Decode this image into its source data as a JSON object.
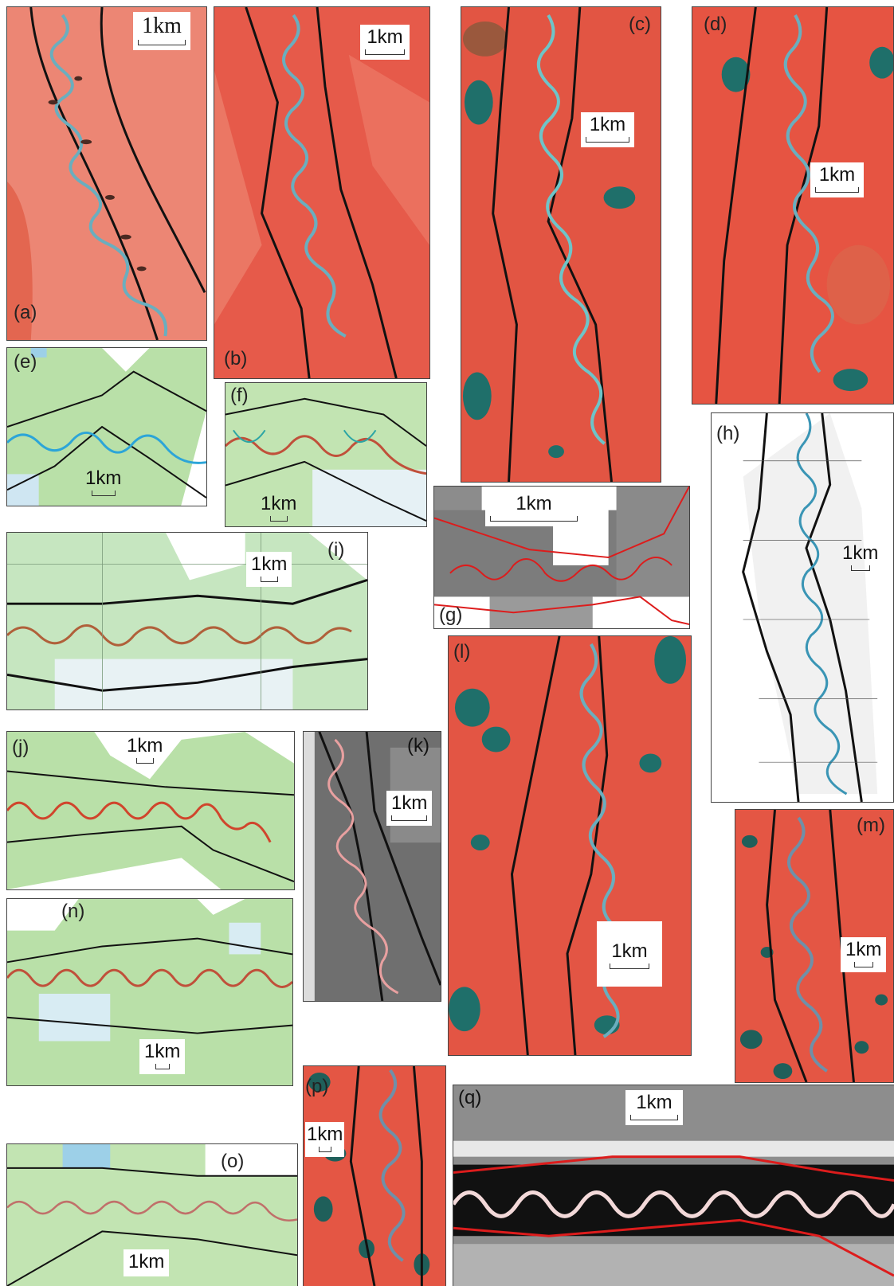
{
  "panels": {
    "a": {
      "label": "(a)",
      "scale": "1km"
    },
    "b": {
      "label": "(b)",
      "scale": "1km"
    },
    "c": {
      "label": "(c)",
      "scale": "1km"
    },
    "d": {
      "label": "(d)",
      "scale": "1km"
    },
    "e": {
      "label": "(e)",
      "scale": "1km"
    },
    "f": {
      "label": "(f)",
      "scale": "1km"
    },
    "g": {
      "label": "(g)",
      "scale": "1km"
    },
    "h": {
      "label": "(h)",
      "scale": "1km"
    },
    "i": {
      "label": "(i)",
      "scale": "1km"
    },
    "j": {
      "label": "(j)",
      "scale": "1km"
    },
    "k": {
      "label": "(k)",
      "scale": "1km"
    },
    "l": {
      "label": "(l)",
      "scale": "1km"
    },
    "m": {
      "label": "(m)",
      "scale": "1km"
    },
    "n": {
      "label": "(n)",
      "scale": "1km"
    },
    "o": {
      "label": "(o)",
      "scale": "1km"
    },
    "p": {
      "label": "(p)",
      "scale": "1km"
    },
    "q": {
      "label": "(q)",
      "scale": "1km"
    }
  },
  "colors": {
    "satellite_red": "#e85a48",
    "topo_green": "#b9e0a8",
    "river_blue": "#5aa9c4",
    "river_red": "#c0503a",
    "boundary_black": "#111111",
    "boundary_red": "#dd1c1c",
    "lake_teal": "#1f6f6a"
  }
}
